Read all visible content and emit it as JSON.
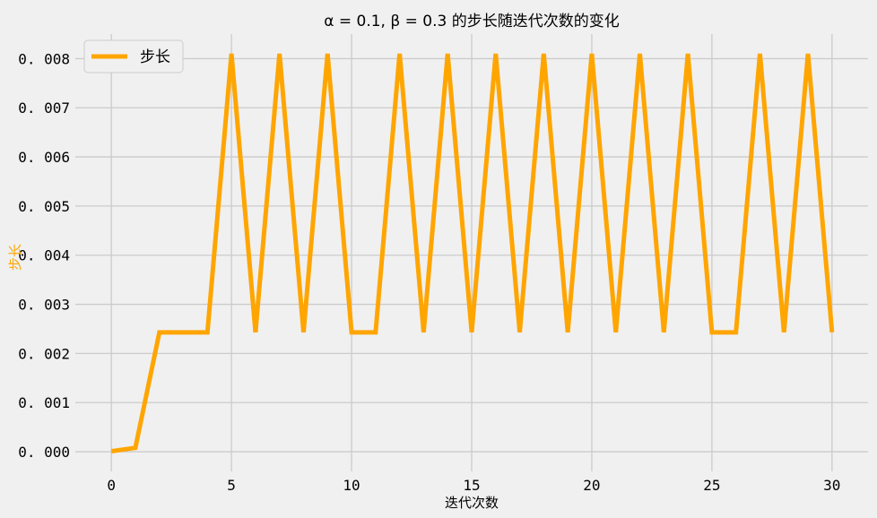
{
  "chart_data": {
    "type": "line",
    "title": "α = 0.1, β = 0.3  的步长随迭代次数的变化",
    "xlabel": "迭代次数",
    "ylabel": "步长",
    "xlim": [
      -1.5,
      31.5
    ],
    "ylim": [
      -0.0004,
      0.0085
    ],
    "xticks": [
      0,
      5,
      10,
      15,
      20,
      25,
      30
    ],
    "xtick_labels": [
      "0",
      "5",
      "10",
      "15",
      "20",
      "25",
      "30"
    ],
    "yticks": [
      0.0,
      0.001,
      0.002,
      0.003,
      0.004,
      0.005,
      0.006,
      0.007,
      0.008
    ],
    "ytick_labels": [
      "0. 000",
      "0. 001",
      "0. 002",
      "0. 003",
      "0. 004",
      "0. 005",
      "0. 006",
      "0. 007",
      "0. 008"
    ],
    "grid": true,
    "legend_position": "top-left",
    "colors": {
      "line": "#ffa500",
      "background": "#f0f0f0",
      "grid": "#cbcbcb"
    },
    "series": [
      {
        "name": "步长",
        "x": [
          0,
          1,
          2,
          3,
          4,
          5,
          6,
          7,
          8,
          9,
          10,
          11,
          12,
          13,
          14,
          15,
          16,
          17,
          18,
          19,
          20,
          21,
          22,
          23,
          24,
          25,
          26,
          27,
          28,
          29,
          30
        ],
        "values": [
          1e-05,
          8e-05,
          0.00243,
          0.00243,
          0.00243,
          0.0081,
          0.00243,
          0.0081,
          0.00243,
          0.0081,
          0.00243,
          0.00243,
          0.0081,
          0.00243,
          0.0081,
          0.00243,
          0.0081,
          0.00243,
          0.0081,
          0.00243,
          0.0081,
          0.00243,
          0.0081,
          0.00243,
          0.0081,
          0.00243,
          0.00243,
          0.0081,
          0.00243,
          0.0081,
          0.00243
        ]
      }
    ]
  }
}
